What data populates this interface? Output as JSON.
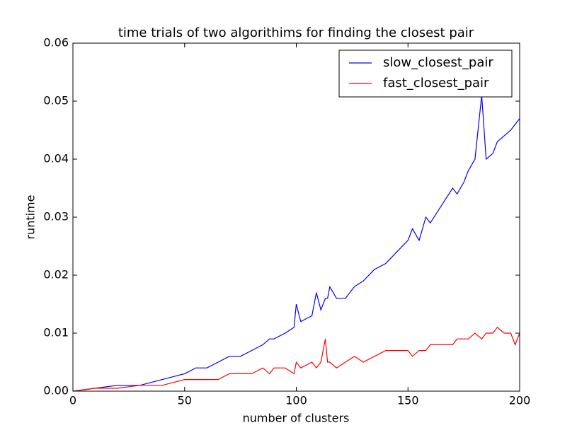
{
  "chart_data": {
    "type": "line",
    "title": "time trials of two algorithims for finding the closest pair",
    "x_label": "number of clusters",
    "y_label": "runtime",
    "x": [
      0,
      10,
      20,
      30,
      40,
      50,
      55,
      60,
      65,
      70,
      75,
      80,
      85,
      88,
      90,
      95,
      99,
      100,
      102,
      107,
      109,
      111,
      113,
      114,
      115,
      118,
      122,
      126,
      130,
      135,
      140,
      145,
      150,
      152,
      155,
      158,
      160,
      165,
      170,
      172,
      175,
      177,
      180,
      183,
      185,
      188,
      190,
      193,
      196,
      198,
      200
    ],
    "series": [
      {
        "name": "slow_closest_pair",
        "color": "#0000ff",
        "values": [
          0,
          0.0005,
          0.001,
          0.001,
          0.002,
          0.003,
          0.004,
          0.004,
          0.005,
          0.006,
          0.006,
          0.007,
          0.008,
          0.009,
          0.009,
          0.01,
          0.011,
          0.015,
          0.012,
          0.013,
          0.017,
          0.014,
          0.016,
          0.016,
          0.018,
          0.016,
          0.016,
          0.018,
          0.019,
          0.021,
          0.022,
          0.024,
          0.026,
          0.028,
          0.026,
          0.03,
          0.029,
          0.032,
          0.035,
          0.034,
          0.036,
          0.038,
          0.04,
          0.051,
          0.04,
          0.041,
          0.043,
          0.044,
          0.045,
          0.046,
          0.047
        ]
      },
      {
        "name": "fast_closest_pair",
        "color": "#ff0000",
        "values": [
          0,
          0.0005,
          0.0005,
          0.001,
          0.001,
          0.002,
          0.002,
          0.002,
          0.002,
          0.003,
          0.003,
          0.003,
          0.004,
          0.003,
          0.004,
          0.004,
          0.003,
          0.005,
          0.004,
          0.005,
          0.004,
          0.005,
          0.009,
          0.005,
          0.005,
          0.004,
          0.005,
          0.006,
          0.005,
          0.006,
          0.007,
          0.007,
          0.007,
          0.006,
          0.007,
          0.007,
          0.008,
          0.008,
          0.008,
          0.009,
          0.009,
          0.009,
          0.01,
          0.009,
          0.01,
          0.01,
          0.011,
          0.01,
          0.01,
          0.008,
          0.01
        ]
      }
    ],
    "xlim": [
      0,
      200
    ],
    "xticks": [
      0,
      50,
      100,
      150,
      200
    ],
    "ylim": [
      0,
      0.06
    ],
    "yticks": [
      {
        "value": 0,
        "label": "0.00"
      },
      0.01,
      0.02,
      0.03,
      0.04,
      0.05,
      0.06
    ],
    "legend": "upper right",
    "grid": false
  }
}
